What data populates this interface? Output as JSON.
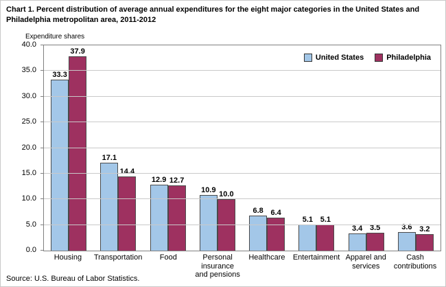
{
  "title": "Chart 1. Percent distribution of average annual expenditures for the eight major categories in the United States and Philadelphia metropolitan area, 2011-2012",
  "y_axis_label": "Expenditure shares",
  "source": "Source: U.S. Bureau of Labor Statistics.",
  "colors": {
    "united_states": "#A3C7E8",
    "philadelphia": "#9E3160",
    "gridline": "#c9c9c9",
    "plot_border": "#808080"
  },
  "chart_data": {
    "type": "bar",
    "title": "Chart 1. Percent distribution of average annual expenditures for the eight major categories in the United States and Philadelphia metropolitan area, 2011-2012",
    "xlabel": "",
    "ylabel": "Expenditure shares",
    "categories": [
      "Housing",
      "Transportation",
      "Food",
      "Personal insurance and pensions",
      "Healthcare",
      "Entertainment",
      "Apparel and services",
      "Cash contributions"
    ],
    "series": [
      {
        "name": "United States",
        "color": "#A3C7E8",
        "values": [
          33.3,
          17.1,
          12.9,
          10.9,
          6.8,
          5.1,
          3.4,
          3.6
        ]
      },
      {
        "name": "Philadelphia",
        "color": "#9E3160",
        "values": [
          37.9,
          14.4,
          12.7,
          10.0,
          6.4,
          5.1,
          3.5,
          3.2
        ]
      }
    ],
    "ylim": [
      0,
      40
    ],
    "ytick_step": 5,
    "grid": true,
    "legend_position": "top-right"
  }
}
